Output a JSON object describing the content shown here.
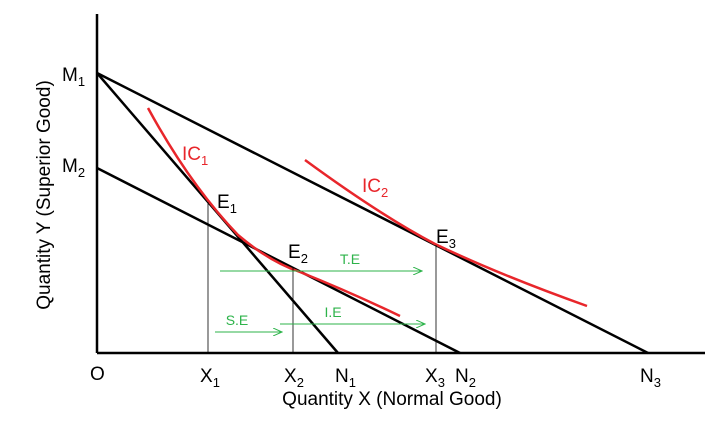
{
  "x_axis_title": "Quantity X (Normal Good)",
  "y_axis_title": "Quantity Y (Superior Good)",
  "points": [
    {
      "text": "M",
      "sub": "1"
    },
    {
      "text": "M",
      "sub": "2"
    },
    {
      "text": "O"
    },
    {
      "text": "X",
      "sub": "1"
    },
    {
      "text": "X",
      "sub": "2"
    },
    {
      "text": "N",
      "sub": "1"
    },
    {
      "text": "X",
      "sub": "3"
    },
    {
      "text": "N",
      "sub": "2"
    },
    {
      "text": "N",
      "sub": "3"
    },
    {
      "text": "E",
      "sub": "1"
    },
    {
      "text": "E",
      "sub": "2"
    },
    {
      "text": "E",
      "sub": "3"
    }
  ],
  "curves": [
    {
      "text": "IC",
      "sub": "1"
    },
    {
      "text": "IC",
      "sub": "2"
    }
  ],
  "effects": [
    "T.E",
    "S.E",
    "I.E"
  ]
}
